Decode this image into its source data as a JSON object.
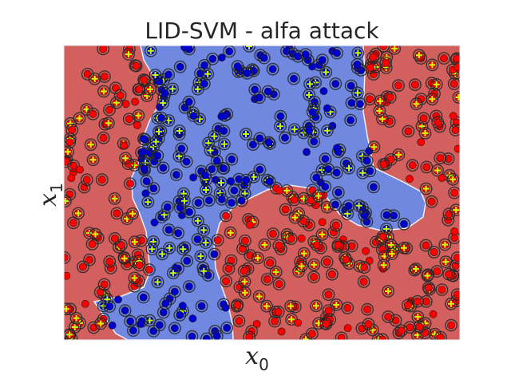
{
  "chart_data": {
    "type": "scatter",
    "title": "LID-SVM - alfa attack",
    "xlabel": {
      "symbol": "x",
      "subscript": "0"
    },
    "ylabel": {
      "symbol": "x",
      "subscript": "1"
    },
    "xlim": [
      0,
      1
    ],
    "ylim": [
      0,
      1
    ],
    "grid": false,
    "ticks_shown": false,
    "background": "decision regions: red (class +1) and blue (class -1)",
    "colors": {
      "region_positive": "#d1605e",
      "region_negative": "#7088e0",
      "boundary": "#eef0f8",
      "point_negative": "#0000cc",
      "point_positive": "#ff0000",
      "flagged_ring": "#262626",
      "plus_marker": "#c8ff00"
    },
    "series": [
      {
        "label": "label -1 (blue points)",
        "marker": "filled circle",
        "color": "#0000cc",
        "approx_count": 260
      },
      {
        "label": "label +1 (red points)",
        "marker": "filled circle",
        "color": "#ff0000",
        "approx_count": 340
      },
      {
        "label": "flagged by LID (ring)",
        "marker": "dark ring",
        "approx_count": 550
      },
      {
        "label": "adversarial flips (+)",
        "marker": "yellow-green plus",
        "color": "#c8ff00",
        "approx_count": 200
      }
    ]
  }
}
